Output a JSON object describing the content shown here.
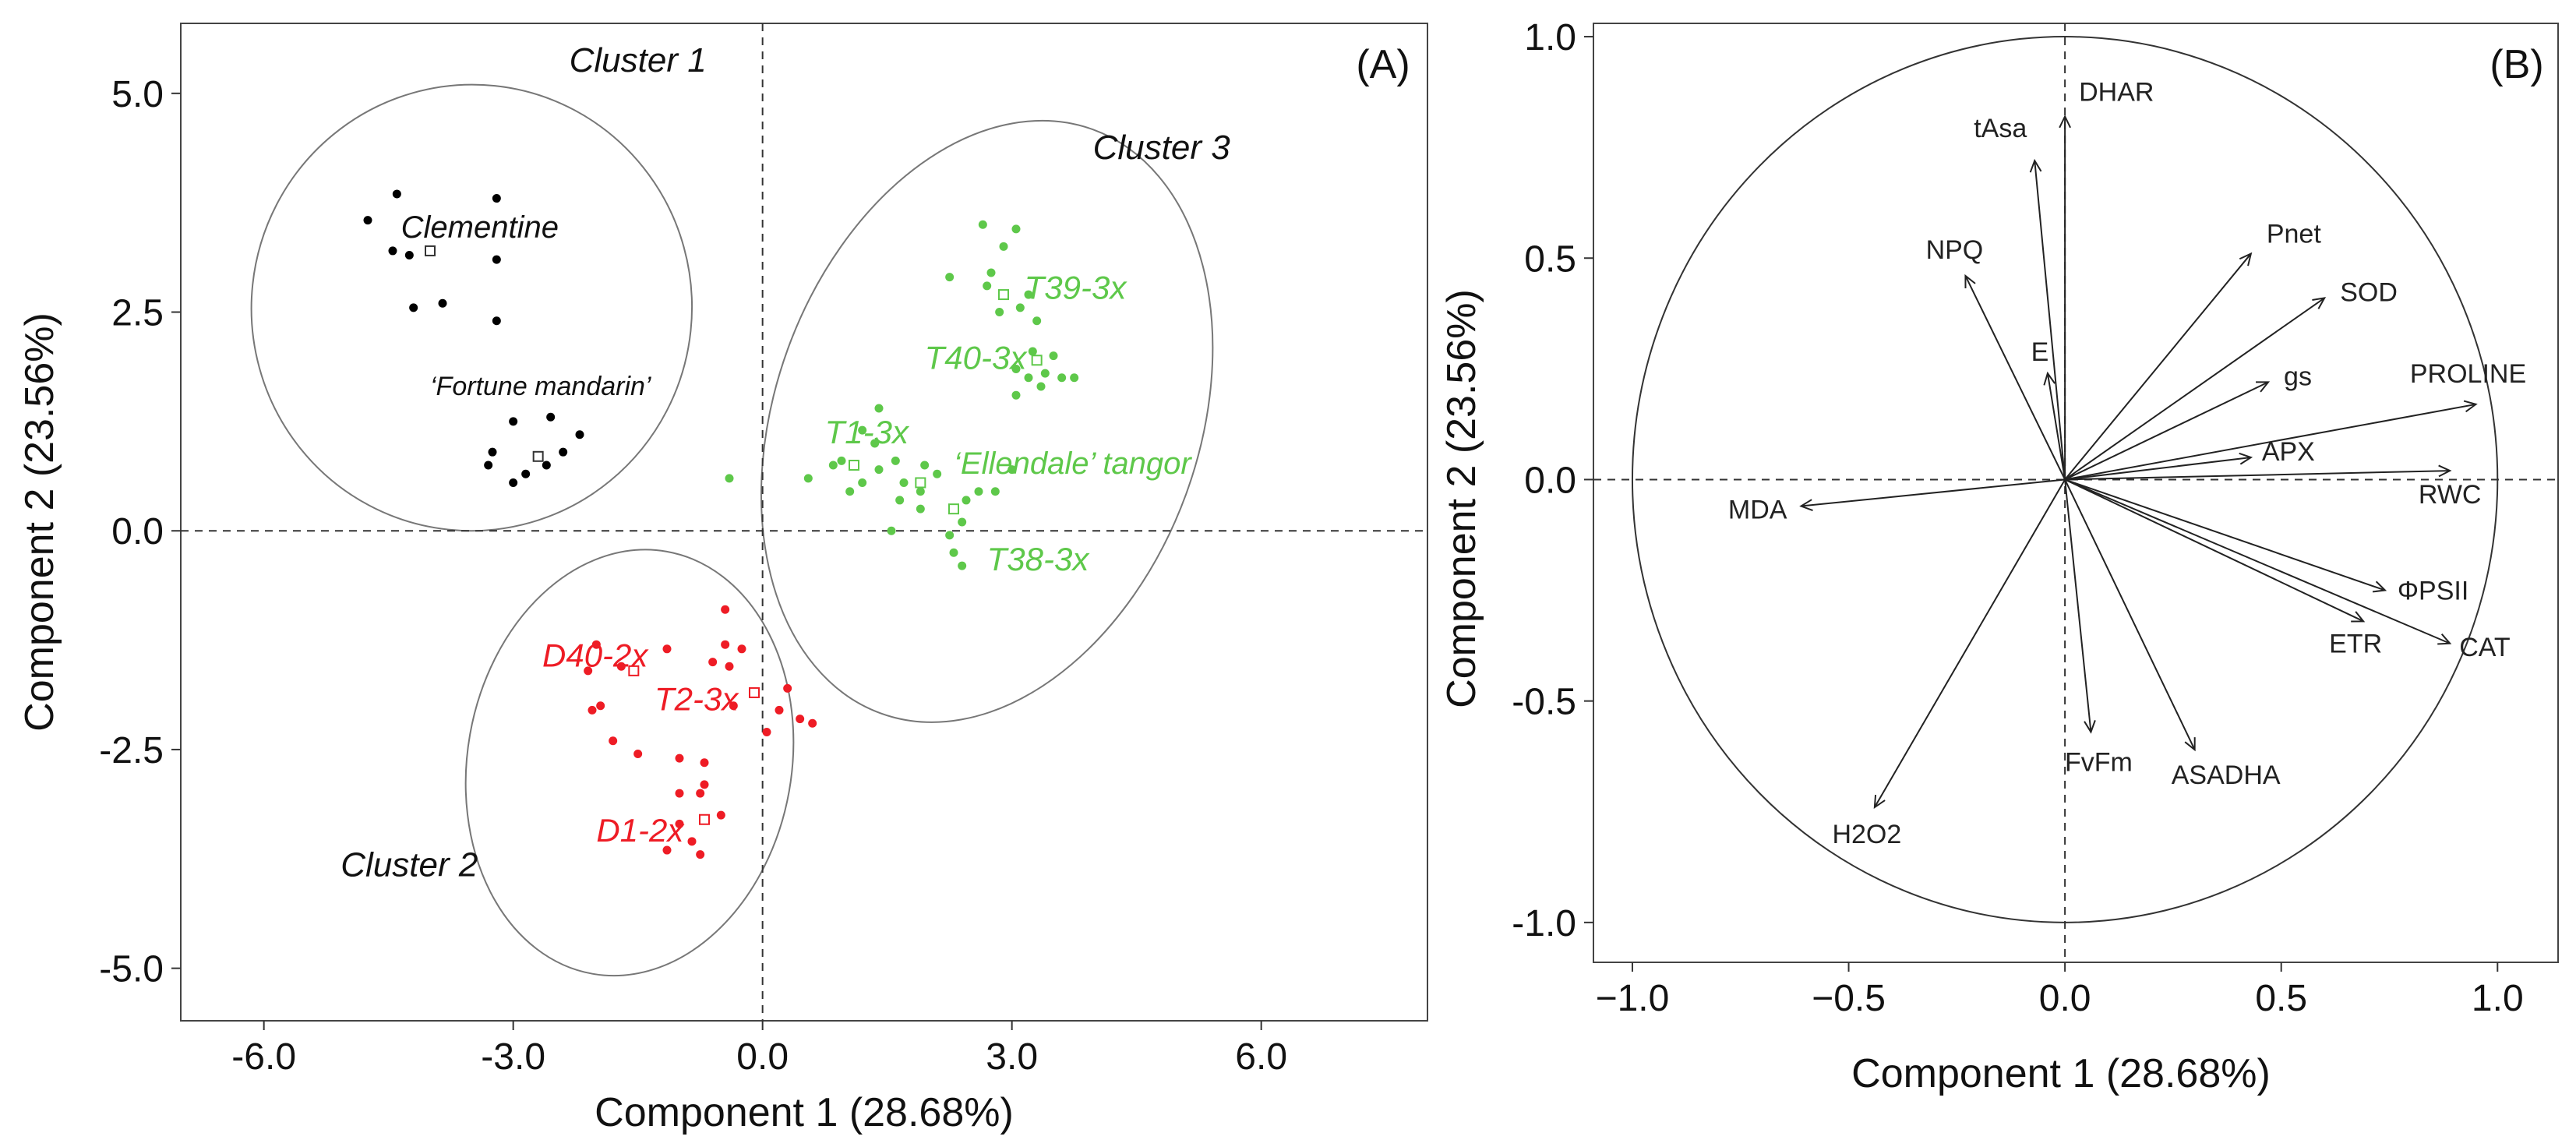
{
  "chart_data": [
    {
      "panel": "(A)",
      "type": "scatter",
      "xlabel": "Component 1 (28.68%)",
      "ylabel": "Component 2 (23.56%)",
      "xlim": [
        -7.0,
        8.0
      ],
      "ylim": [
        -5.6,
        5.8
      ],
      "xticks": [
        -6.0,
        -3.0,
        0.0,
        3.0,
        6.0
      ],
      "xtick_labels": [
        "-6.0",
        "-3.0",
        "0.0",
        "3.0",
        "6.0"
      ],
      "yticks": [
        5.0,
        2.5,
        0.0,
        -2.5,
        -5.0
      ],
      "ytick_labels": [
        "5.0",
        "2.5",
        "0.0",
        "-2.5",
        "-5.0"
      ],
      "clusters": [
        {
          "label": "Cluster 1",
          "color": "#000000",
          "ellipse": {
            "cx": -3.5,
            "cy": 2.55,
            "rx": 2.65,
            "ry": 2.55,
            "rotate_deg": 6
          }
        },
        {
          "label": "Cluster 2",
          "color": "#ee1c25",
          "ellipse": {
            "cx": -1.6,
            "cy": -2.65,
            "rx": 1.95,
            "ry": 2.45,
            "rotate_deg": 10
          }
        },
        {
          "label": "Cluster 3",
          "color": "#5ec84a",
          "ellipse": {
            "cx": 2.7,
            "cy": 1.25,
            "rx": 2.55,
            "ry": 3.55,
            "rotate_deg": 20
          }
        }
      ],
      "series": [
        {
          "name": "Clementine",
          "cluster": 0,
          "color": "#000000",
          "centroid": [
            -4.0,
            3.2
          ],
          "points": [
            [
              -4.75,
              3.55
            ],
            [
              -4.4,
              3.85
            ],
            [
              -3.2,
              3.8
            ],
            [
              -4.45,
              3.2
            ],
            [
              -4.25,
              3.15
            ],
            [
              -3.2,
              3.1
            ],
            [
              -4.2,
              2.55
            ],
            [
              -3.85,
              2.6
            ],
            [
              -3.2,
              2.4
            ]
          ]
        },
        {
          "name": "‘Fortune mandarin’",
          "cluster": 0,
          "color": "#000000",
          "centroid": [
            -2.7,
            0.85
          ],
          "points": [
            [
              -3.0,
              1.25
            ],
            [
              -2.55,
              1.3
            ],
            [
              -2.2,
              1.1
            ],
            [
              -3.25,
              0.9
            ],
            [
              -2.4,
              0.9
            ],
            [
              -3.3,
              0.75
            ],
            [
              -2.85,
              0.65
            ],
            [
              -2.6,
              0.75
            ],
            [
              -3.0,
              0.55
            ]
          ]
        },
        {
          "name": "D40-2x",
          "cluster": 1,
          "color": "#ee1c25",
          "centroid": [
            -1.55,
            -1.6
          ],
          "points": [
            [
              -2.0,
              -1.3
            ],
            [
              -1.15,
              -1.35
            ],
            [
              -2.1,
              -1.6
            ],
            [
              -1.7,
              -1.55
            ],
            [
              -1.55,
              -1.6
            ],
            [
              -2.05,
              -2.05
            ],
            [
              -1.95,
              -2.0
            ],
            [
              -1.8,
              -2.4
            ],
            [
              -1.5,
              -2.55
            ]
          ]
        },
        {
          "name": "T2-3x",
          "cluster": 1,
          "color": "#ee1c25",
          "centroid": [
            -0.1,
            -1.85
          ],
          "points": [
            [
              -0.45,
              -0.9
            ],
            [
              -0.45,
              -1.3
            ],
            [
              -0.25,
              -1.35
            ],
            [
              -0.6,
              -1.5
            ],
            [
              -0.4,
              -1.55
            ],
            [
              0.3,
              -1.8
            ],
            [
              -0.35,
              -2.0
            ],
            [
              0.2,
              -2.05
            ],
            [
              0.45,
              -2.15
            ],
            [
              0.6,
              -2.2
            ],
            [
              0.05,
              -2.3
            ]
          ]
        },
        {
          "name": "D1-2x",
          "cluster": 1,
          "color": "#ee1c25",
          "centroid": [
            -0.7,
            -3.3
          ],
          "points": [
            [
              -1.0,
              -2.6
            ],
            [
              -0.7,
              -2.65
            ],
            [
              -0.7,
              -2.9
            ],
            [
              -0.75,
              -3.0
            ],
            [
              -1.0,
              -3.0
            ],
            [
              -0.5,
              -3.25
            ],
            [
              -1.0,
              -3.35
            ],
            [
              -0.85,
              -3.55
            ],
            [
              -1.15,
              -3.65
            ],
            [
              -0.75,
              -3.7
            ]
          ]
        },
        {
          "name": "T39-3x",
          "cluster": 2,
          "color": "#5ec84a",
          "centroid": [
            2.9,
            2.7
          ],
          "points": [
            [
              2.65,
              3.5
            ],
            [
              3.05,
              3.45
            ],
            [
              2.9,
              3.25
            ],
            [
              2.25,
              2.9
            ],
            [
              2.75,
              2.95
            ],
            [
              2.7,
              2.8
            ],
            [
              3.2,
              2.7
            ],
            [
              2.85,
              2.5
            ],
            [
              3.1,
              2.55
            ],
            [
              3.3,
              2.4
            ]
          ]
        },
        {
          "name": "T40-3x",
          "cluster": 2,
          "color": "#5ec84a",
          "centroid": [
            3.3,
            1.95
          ],
          "points": [
            [
              3.25,
              2.05
            ],
            [
              3.5,
              2.0
            ],
            [
              3.05,
              1.85
            ],
            [
              3.4,
              1.8
            ],
            [
              3.2,
              1.75
            ],
            [
              3.6,
              1.75
            ],
            [
              3.75,
              1.75
            ],
            [
              3.35,
              1.65
            ],
            [
              3.05,
              1.55
            ]
          ]
        },
        {
          "name": "T1-3x",
          "cluster": 2,
          "color": "#5ec84a",
          "centroid": [
            1.1,
            0.75
          ],
          "points": [
            [
              1.4,
              1.4
            ],
            [
              1.2,
              1.15
            ],
            [
              1.35,
              1.0
            ],
            [
              0.95,
              0.8
            ],
            [
              0.85,
              0.75
            ],
            [
              1.6,
              0.8
            ],
            [
              1.4,
              0.7
            ],
            [
              3.0,
              0.7
            ],
            [
              2.1,
              0.65
            ],
            [
              1.2,
              0.55
            ],
            [
              -0.4,
              0.6
            ],
            [
              0.55,
              0.6
            ],
            [
              1.05,
              0.45
            ]
          ]
        },
        {
          "name": "‘Ellendale’ tangor",
          "cluster": 2,
          "color": "#5ec84a",
          "centroid": [
            1.9,
            0.55
          ],
          "points": [
            [
              1.95,
              0.75
            ],
            [
              1.7,
              0.55
            ],
            [
              1.9,
              0.45
            ],
            [
              2.6,
              0.45
            ],
            [
              2.8,
              0.45
            ],
            [
              1.65,
              0.35
            ],
            [
              1.9,
              0.25
            ],
            [
              1.55,
              0.0
            ]
          ]
        },
        {
          "name": "T38-3x",
          "cluster": 2,
          "color": "#5ec84a",
          "centroid": [
            2.3,
            0.25
          ],
          "points": [
            [
              2.45,
              0.35
            ],
            [
              2.4,
              0.1
            ],
            [
              2.25,
              -0.05
            ],
            [
              2.3,
              -0.25
            ],
            [
              2.4,
              -0.4
            ]
          ]
        }
      ],
      "annotations": [
        "Cluster 1",
        "Cluster 2",
        "Cluster 3",
        "Clementine",
        "‘Fortune mandarin’",
        "D40-2x",
        "T2-3x",
        "D1-2x",
        "T39-3x",
        "T40-3x",
        "T1-3x",
        "‘Ellendale’ tangor",
        "T38-3x"
      ]
    },
    {
      "panel": "(B)",
      "type": "biplot",
      "xlabel": "Component 1 (28.68%)",
      "ylabel": "Component 2 (23.56%)",
      "xlim": [
        -1.09,
        1.14
      ],
      "ylim": [
        -1.09,
        1.03
      ],
      "xticks": [
        -1.0,
        -0.5,
        0.0,
        0.5,
        1.0
      ],
      "xtick_labels": [
        "−1.0",
        "−0.5",
        "0.0",
        "0.5",
        "1.0"
      ],
      "yticks": [
        1.0,
        0.5,
        0.0,
        -0.5,
        -1.0
      ],
      "ytick_labels": [
        "1.0",
        "0.5",
        "0.0",
        "-0.5",
        "-1.0"
      ],
      "unit_circle_radius": 1.0,
      "vectors": [
        {
          "name": "DHAR",
          "x": 0.0,
          "y": 0.82
        },
        {
          "name": "tAsa",
          "x": -0.07,
          "y": 0.72
        },
        {
          "name": "NPQ",
          "x": -0.23,
          "y": 0.46
        },
        {
          "name": "E",
          "x": -0.04,
          "y": 0.24
        },
        {
          "name": "Pnet",
          "x": 0.43,
          "y": 0.51
        },
        {
          "name": "SOD",
          "x": 0.6,
          "y": 0.41
        },
        {
          "name": "gs",
          "x": 0.47,
          "y": 0.22
        },
        {
          "name": "PROLINE",
          "x": 0.95,
          "y": 0.17
        },
        {
          "name": "APX",
          "x": 0.43,
          "y": 0.05
        },
        {
          "name": "RWC",
          "x": 0.89,
          "y": 0.02
        },
        {
          "name": "MDA",
          "x": -0.61,
          "y": -0.06
        },
        {
          "name": "ΦPSII",
          "x": 0.74,
          "y": -0.25
        },
        {
          "name": "CAT",
          "x": 0.89,
          "y": -0.37
        },
        {
          "name": "ETR",
          "x": 0.69,
          "y": -0.32
        },
        {
          "name": "FvFm",
          "x": 0.06,
          "y": -0.57
        },
        {
          "name": "ASADHA",
          "x": 0.3,
          "y": -0.61
        },
        {
          "name": "H2O2",
          "x": -0.44,
          "y": -0.74
        }
      ]
    }
  ]
}
